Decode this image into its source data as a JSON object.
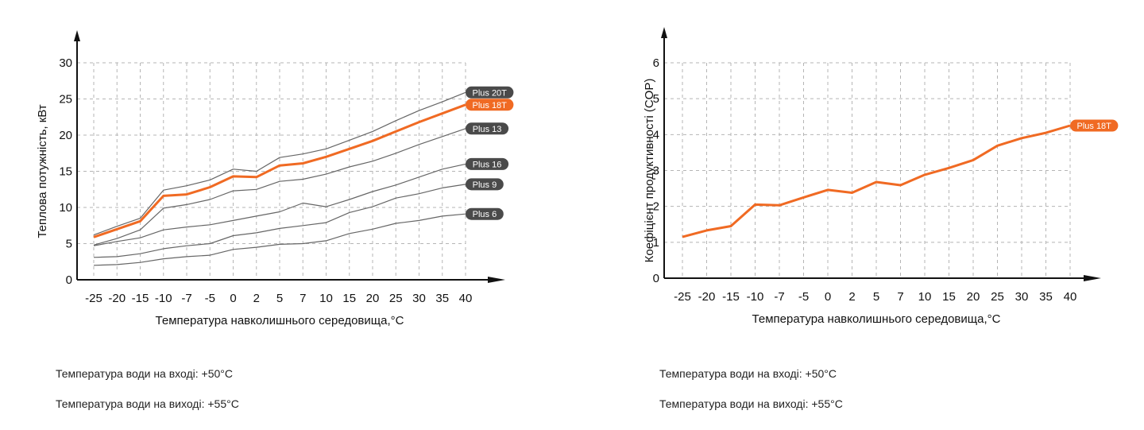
{
  "chart_data": [
    {
      "type": "line",
      "categories": [
        "-25",
        "-20",
        "-15",
        "-10",
        "-7",
        "-5",
        "0",
        "2",
        "5",
        "7",
        "10",
        "15",
        "20",
        "25",
        "30",
        "35",
        "40"
      ],
      "xlabel": "Температура навколишнього середовища,°С",
      "ylabel": "Теплова потужність, кВт",
      "ylim": [
        0,
        30
      ],
      "yticks": [
        0,
        5,
        10,
        15,
        20,
        25,
        30
      ],
      "grid": true,
      "series": [
        {
          "name": "Plus 20T",
          "highlight": false,
          "values": [
            6.2,
            7.4,
            8.5,
            12.4,
            13.0,
            13.8,
            15.3,
            15.0,
            16.9,
            17.4,
            18.1,
            19.3,
            20.5,
            22.0,
            23.4,
            24.6,
            25.9
          ]
        },
        {
          "name": "Plus 18T",
          "highlight": true,
          "values": [
            5.9,
            7.0,
            8.1,
            11.6,
            11.8,
            12.8,
            14.3,
            14.2,
            15.8,
            16.1,
            17.0,
            18.1,
            19.2,
            20.5,
            21.8,
            23.0,
            24.2
          ]
        },
        {
          "name": "Plus 13",
          "highlight": false,
          "values": [
            4.8,
            5.7,
            6.9,
            9.9,
            10.4,
            11.1,
            12.3,
            12.5,
            13.6,
            13.9,
            14.6,
            15.6,
            16.4,
            17.5,
            18.7,
            19.8,
            20.9
          ]
        },
        {
          "name": "Plus 16",
          "highlight": false,
          "values": [
            4.7,
            5.3,
            5.8,
            6.9,
            7.3,
            7.6,
            8.2,
            8.8,
            9.4,
            10.6,
            10.1,
            11.1,
            12.2,
            13.1,
            14.2,
            15.3,
            16.0
          ]
        },
        {
          "name": "Plus 9",
          "highlight": false,
          "values": [
            3.1,
            3.2,
            3.6,
            4.3,
            4.7,
            5.0,
            6.1,
            6.5,
            7.1,
            7.5,
            7.9,
            9.3,
            10.1,
            11.3,
            11.9,
            12.7,
            13.2
          ]
        },
        {
          "name": "Plus 6",
          "highlight": false,
          "values": [
            2.0,
            2.1,
            2.4,
            2.9,
            3.2,
            3.4,
            4.2,
            4.5,
            4.9,
            5.0,
            5.4,
            6.4,
            7.0,
            7.8,
            8.2,
            8.8,
            9.1
          ]
        }
      ],
      "colors": {
        "highlight": "#f06a23",
        "normal": "#666666",
        "label_bg": "#4a4a4a",
        "grid": "#b5b5b5",
        "axis": "#111111"
      }
    },
    {
      "type": "line",
      "categories": [
        "-25",
        "-20",
        "-15",
        "-10",
        "-7",
        "-5",
        "0",
        "2",
        "5",
        "7",
        "10",
        "15",
        "20",
        "25",
        "30",
        "35",
        "40"
      ],
      "xlabel": "Температура навколишнього середовища,°С",
      "ylabel": "Коефіцієнт продуктивності (COP)",
      "ylim": [
        0,
        6
      ],
      "yticks": [
        0,
        1,
        2,
        3,
        4,
        5,
        6
      ],
      "grid": true,
      "series": [
        {
          "name": "Plus 18T",
          "highlight": true,
          "values": [
            1.15,
            1.33,
            1.45,
            2.05,
            2.03,
            2.25,
            2.46,
            2.38,
            2.68,
            2.59,
            2.88,
            3.07,
            3.29,
            3.69,
            3.9,
            4.05,
            4.25
          ]
        }
      ],
      "colors": {
        "highlight": "#f06a23",
        "normal": "#666666",
        "label_bg": "#4a4a4a",
        "grid": "#b5b5b5",
        "axis": "#111111"
      }
    }
  ],
  "notes": {
    "left": {
      "inlet": "Температура води на вході: +50°С",
      "outlet": "Температура води на виході: +55°С"
    },
    "right": {
      "inlet": "Температура води на вході: +50°С",
      "outlet": "Температура води на виході: +55°С"
    }
  }
}
